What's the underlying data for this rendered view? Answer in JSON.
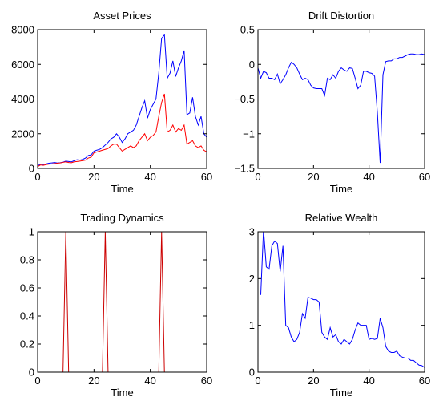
{
  "chart_data": [
    {
      "type": "line",
      "title": "Asset Prices",
      "xlabel": "Time",
      "ylabel": "",
      "xlim": [
        0,
        60
      ],
      "ylim": [
        0,
        8000
      ],
      "xticks": [
        "0",
        "20",
        "40",
        "60"
      ],
      "yticks": [
        "0",
        "2000",
        "4000",
        "6000",
        "8000"
      ],
      "grid": false,
      "series": [
        {
          "color": "#0000ff",
          "x": [
            0,
            1,
            2,
            3,
            4,
            5,
            6,
            7,
            8,
            9,
            10,
            11,
            12,
            13,
            14,
            15,
            16,
            17,
            18,
            19,
            20,
            21,
            22,
            23,
            24,
            25,
            26,
            27,
            28,
            29,
            30,
            31,
            32,
            33,
            34,
            35,
            36,
            37,
            38,
            39,
            40,
            41,
            42,
            43,
            44,
            45,
            46,
            47,
            48,
            49,
            50,
            51,
            52,
            53,
            54,
            55,
            56,
            57,
            58,
            59,
            60
          ],
          "y": [
            150,
            250,
            230,
            260,
            300,
            320,
            340,
            310,
            330,
            360,
            420,
            400,
            380,
            450,
            500,
            480,
            520,
            600,
            750,
            780,
            1000,
            1050,
            1100,
            1200,
            1350,
            1500,
            1700,
            1800,
            2000,
            1800,
            1500,
            1700,
            2000,
            2100,
            2200,
            2500,
            3000,
            3500,
            3900,
            2900,
            3400,
            3700,
            4000,
            5500,
            7500,
            7700,
            5200,
            5500,
            6200,
            5300,
            5800,
            6200,
            6800,
            3100,
            3200,
            4100,
            3000,
            2500,
            3000,
            2000,
            1800
          ]
        },
        {
          "color": "#ff0000",
          "x": [
            0,
            1,
            2,
            3,
            4,
            5,
            6,
            7,
            8,
            9,
            10,
            11,
            12,
            13,
            14,
            15,
            16,
            17,
            18,
            19,
            20,
            21,
            22,
            23,
            24,
            25,
            26,
            27,
            28,
            29,
            30,
            31,
            32,
            33,
            34,
            35,
            36,
            37,
            38,
            39,
            40,
            41,
            42,
            43,
            44,
            45,
            46,
            47,
            48,
            49,
            50,
            51,
            52,
            53,
            54,
            55,
            56,
            57,
            58,
            59,
            60
          ],
          "y": [
            100,
            200,
            180,
            220,
            250,
            260,
            280,
            300,
            320,
            350,
            380,
            340,
            330,
            380,
            400,
            420,
            450,
            480,
            600,
            650,
            900,
            950,
            1000,
            1050,
            1100,
            1150,
            1300,
            1400,
            1400,
            1200,
            1000,
            1100,
            1200,
            1300,
            1200,
            1300,
            1600,
            1800,
            2000,
            1600,
            1800,
            1900,
            2100,
            3000,
            3800,
            4300,
            2100,
            2200,
            2500,
            2100,
            2300,
            2200,
            2500,
            1400,
            1500,
            1600,
            1300,
            1200,
            1300,
            1050,
            950
          ]
        }
      ]
    },
    {
      "type": "line",
      "title": "Drift Distortion",
      "xlabel": "Time",
      "ylabel": "",
      "xlim": [
        0,
        60
      ],
      "ylim": [
        -1.5,
        0.5
      ],
      "xticks": [
        "0",
        "20",
        "40",
        "60"
      ],
      "yticks": [
        "−1.5",
        "−1",
        "−0.5",
        "0",
        "0.5"
      ],
      "grid": false,
      "series": [
        {
          "color": "#0000ff",
          "x": [
            0,
            1,
            2,
            3,
            4,
            5,
            6,
            7,
            8,
            9,
            10,
            11,
            12,
            13,
            14,
            15,
            16,
            17,
            18,
            19,
            20,
            21,
            22,
            23,
            24,
            25,
            26,
            27,
            28,
            29,
            30,
            31,
            32,
            33,
            34,
            35,
            36,
            37,
            38,
            39,
            40,
            41,
            42,
            43,
            44,
            45,
            46,
            47,
            48,
            49,
            50,
            51,
            52,
            53,
            54,
            55,
            56,
            57,
            58,
            59,
            60
          ],
          "y": [
            -0.05,
            -0.2,
            -0.1,
            -0.12,
            -0.2,
            -0.2,
            -0.22,
            -0.14,
            -0.28,
            -0.22,
            -0.15,
            -0.05,
            0.03,
            0.0,
            -0.05,
            -0.14,
            -0.22,
            -0.2,
            -0.22,
            -0.3,
            -0.34,
            -0.35,
            -0.35,
            -0.35,
            -0.45,
            -0.2,
            -0.22,
            -0.15,
            -0.2,
            -0.1,
            -0.05,
            -0.08,
            -0.1,
            -0.05,
            -0.06,
            -0.2,
            -0.35,
            -0.3,
            -0.1,
            -0.1,
            -0.12,
            -0.13,
            -0.17,
            -0.7,
            -1.42,
            -0.15,
            0.04,
            0.05,
            0.05,
            0.08,
            0.08,
            0.1,
            0.1,
            0.12,
            0.14,
            0.15,
            0.15,
            0.14,
            0.14,
            0.15,
            0.14
          ]
        }
      ]
    },
    {
      "type": "line",
      "title": "Trading Dynamics",
      "xlabel": "Time",
      "ylabel": "",
      "xlim": [
        0,
        60
      ],
      "ylim": [
        0,
        1
      ],
      "xticks": [
        "0",
        "20",
        "40",
        "60"
      ],
      "yticks": [
        "0",
        "0.2",
        "0.4",
        "0.6",
        "0.8",
        "1"
      ],
      "grid": false,
      "series": [
        {
          "color": "#cc0000",
          "x": [
            0,
            9,
            10,
            11,
            23,
            24,
            25,
            43,
            44,
            45,
            60
          ],
          "y": [
            0,
            0,
            1,
            0,
            0,
            1,
            0,
            0,
            1,
            0,
            0
          ]
        }
      ]
    },
    {
      "type": "line",
      "title": "Relative Wealth",
      "xlabel": "Time",
      "ylabel": "",
      "xlim": [
        0,
        60
      ],
      "ylim": [
        0,
        3
      ],
      "xticks": [
        "0",
        "20",
        "40",
        "60"
      ],
      "yticks": [
        "0",
        "1",
        "2",
        "3"
      ],
      "grid": false,
      "series": [
        {
          "color": "#0000ff",
          "x": [
            1,
            2,
            3,
            4,
            5,
            6,
            7,
            8,
            9,
            10,
            11,
            12,
            13,
            14,
            15,
            16,
            17,
            18,
            19,
            20,
            21,
            22,
            23,
            24,
            25,
            26,
            27,
            28,
            29,
            30,
            31,
            32,
            33,
            34,
            35,
            36,
            37,
            38,
            39,
            40,
            41,
            42,
            43,
            44,
            45,
            46,
            47,
            48,
            49,
            50,
            51,
            52,
            53,
            54,
            55,
            56,
            57,
            58,
            59,
            60
          ],
          "y": [
            1.65,
            3.05,
            2.25,
            2.2,
            2.7,
            2.8,
            2.75,
            2.15,
            2.7,
            1.0,
            0.95,
            0.75,
            0.65,
            0.7,
            0.85,
            1.25,
            1.15,
            1.6,
            1.58,
            1.55,
            1.55,
            1.5,
            0.85,
            0.75,
            0.7,
            0.95,
            0.75,
            0.8,
            0.65,
            0.6,
            0.7,
            0.65,
            0.6,
            0.7,
            0.9,
            1.05,
            1.0,
            1.0,
            1.0,
            0.7,
            0.72,
            0.7,
            0.72,
            1.15,
            0.95,
            0.55,
            0.45,
            0.42,
            0.42,
            0.45,
            0.35,
            0.32,
            0.3,
            0.3,
            0.25,
            0.25,
            0.2,
            0.15,
            0.14,
            0.1
          ]
        }
      ]
    }
  ]
}
